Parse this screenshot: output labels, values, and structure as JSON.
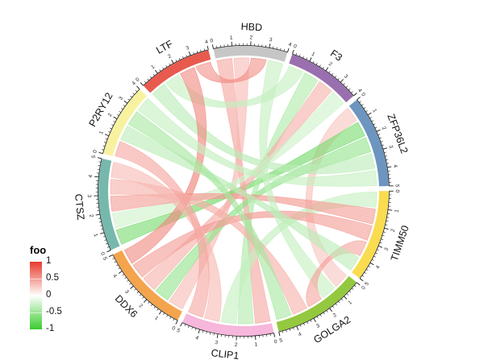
{
  "chart_data": {
    "type": "chord",
    "description": "Circular chord diagram (circlize-style) of gene-gene correlation links",
    "background": "#FFFFFF",
    "legend": {
      "title": "foo",
      "ticks": [
        "1",
        "0.5",
        "0",
        "-0.5",
        "-1"
      ],
      "max": 1,
      "min": -1,
      "position": "bottom-left"
    },
    "colormap": {
      "positive": "#E8392B",
      "zero": "#FFFFFF",
      "negative": "#3BCC2E"
    },
    "sectors": [
      {
        "name": "HBD",
        "color": "#C6C6C6",
        "max": 4,
        "tick_labels": [
          0,
          1,
          2,
          3,
          4
        ]
      },
      {
        "name": "F3",
        "color": "#9A6FAF",
        "max": 4,
        "tick_labels": [
          0,
          1,
          2,
          3,
          4
        ]
      },
      {
        "name": "ZFP36L2",
        "color": "#6C95BF",
        "max": 5,
        "tick_labels": [
          0,
          1,
          2,
          3,
          4,
          5
        ]
      },
      {
        "name": "TIMM50",
        "color": "#F9DC4F",
        "max": 5,
        "tick_labels": [
          0,
          1,
          2,
          3,
          4,
          5
        ]
      },
      {
        "name": "GOLGA2",
        "color": "#93C83F",
        "max": 5,
        "tick_labels": [
          0,
          1,
          2,
          3,
          4,
          5
        ]
      },
      {
        "name": "CLIP1",
        "color": "#F7B6DB",
        "max": 5,
        "tick_labels": [
          0,
          1,
          2,
          3,
          4,
          5
        ]
      },
      {
        "name": "DDX6",
        "color": "#F4A44C",
        "max": 5,
        "tick_labels": [
          0,
          1,
          2,
          3,
          4,
          5
        ]
      },
      {
        "name": "CTSZ",
        "color": "#77B8AC",
        "max": 5,
        "tick_labels": [
          0,
          1,
          2,
          3,
          4,
          5
        ]
      },
      {
        "name": "P2RY12",
        "color": "#F8F2A0",
        "max": 4,
        "tick_labels": [
          0,
          1,
          2,
          3,
          4
        ]
      },
      {
        "name": "LTF",
        "color": "#E85A4E",
        "max": 4,
        "tick_labels": [
          0,
          1,
          2,
          3,
          4
        ]
      }
    ],
    "links": [
      {
        "source": "HBD",
        "target": "CLIP1",
        "value": 0.45
      },
      {
        "source": "ZFP36L2",
        "target": "GOLGA2",
        "value": 0.3
      },
      {
        "source": "HBD",
        "target": "DDX6",
        "value": 0.35
      },
      {
        "source": "ZFP36L2",
        "target": "CTSZ",
        "value": -0.7
      },
      {
        "source": "ZFP36L2",
        "target": "DDX6",
        "value": -0.55
      },
      {
        "source": "ZFP36L2",
        "target": "LTF",
        "value": -0.35
      },
      {
        "source": "F3",
        "target": "LTF",
        "value": -0.3
      },
      {
        "source": "F3",
        "target": "CLIP1",
        "value": -0.4
      },
      {
        "source": "F3",
        "target": "DDX6",
        "value": 0.4
      },
      {
        "source": "F3",
        "target": "CTSZ",
        "value": -0.25
      },
      {
        "source": "TIMM50",
        "target": "CLIP1",
        "value": -0.3
      },
      {
        "source": "TIMM50",
        "target": "CTSZ",
        "value": 0.5
      },
      {
        "source": "TIMM50",
        "target": "DDX6",
        "value": 0.5
      },
      {
        "source": "DDX6",
        "target": "LTF",
        "value": 0.6
      },
      {
        "source": "HBD",
        "target": "LTF",
        "value": 0.55
      },
      {
        "source": "HBD",
        "target": "GOLGA2",
        "value": -0.3
      },
      {
        "source": "TIMM50",
        "target": "GOLGA2",
        "value": 0.45
      },
      {
        "source": "GOLGA2",
        "target": "CTSZ",
        "value": 0.4
      },
      {
        "source": "CTSZ",
        "target": "CLIP1",
        "value": 0.35
      },
      {
        "source": "CLIP1",
        "target": "P2RY12",
        "value": 0.45
      },
      {
        "source": "TIMM50",
        "target": "P2RY12",
        "value": -0.35
      },
      {
        "source": "GOLGA2",
        "target": "P2RY12",
        "value": -0.45
      },
      {
        "source": "ZFP36L2",
        "target": "P2RY12",
        "value": -0.3
      }
    ]
  }
}
